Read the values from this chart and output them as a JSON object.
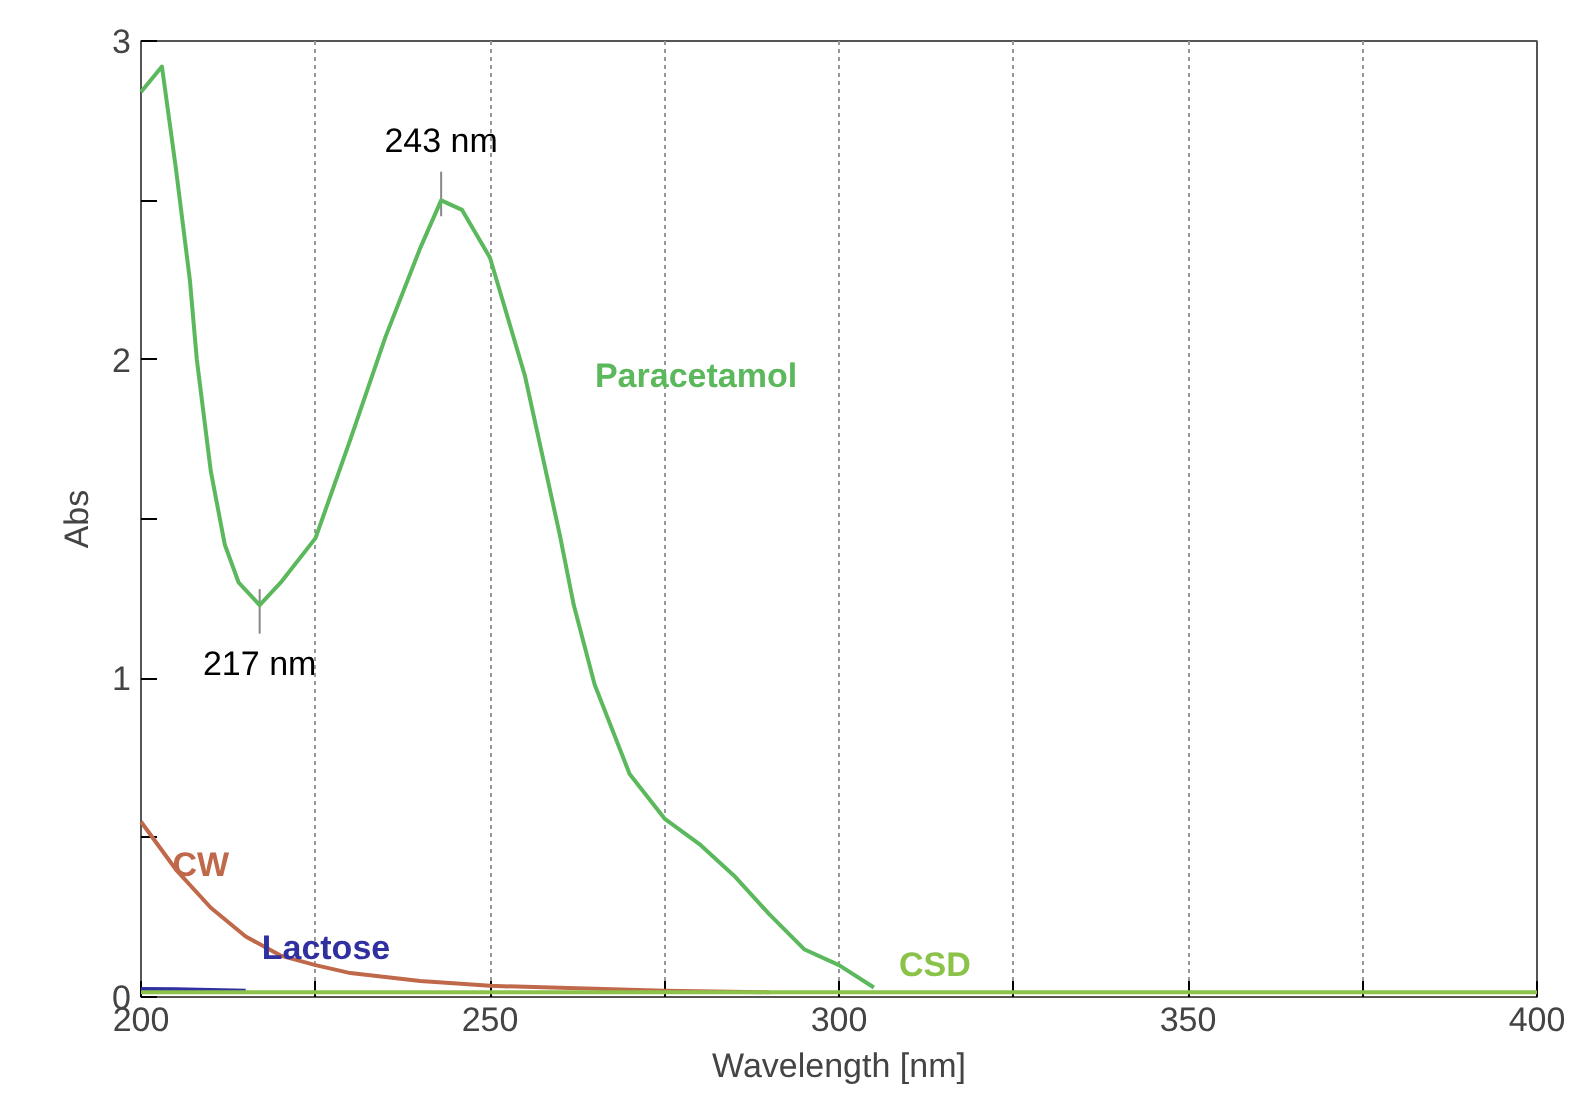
{
  "chart_data": {
    "type": "line",
    "xlabel": "Wavelength [nm]",
    "ylabel": "Abs",
    "xlim": [
      200,
      400
    ],
    "ylim": [
      0,
      3
    ],
    "xticks": [
      200,
      {
        "value": 225,
        "label": null
      },
      250,
      {
        "value": 275,
        "label": null
      },
      300,
      {
        "value": 325,
        "label": null
      },
      350,
      {
        "value": 375,
        "label": null
      },
      400
    ],
    "yticks": [
      0,
      {
        "value": 0.5,
        "label": null
      },
      1,
      {
        "value": 1.5,
        "label": null
      },
      2,
      {
        "value": 2.5,
        "label": null
      },
      3
    ],
    "grid": "x",
    "marker": "none",
    "line_style": "solid",
    "series": [
      {
        "name": "Paracetamol",
        "color": "#5cb85c",
        "x": [
          200,
          203,
          205,
          207,
          208,
          210,
          212,
          214,
          217,
          220,
          225,
          230,
          235,
          240,
          243,
          246,
          250,
          255,
          260,
          262,
          265,
          270,
          275,
          280,
          285,
          290,
          295,
          300,
          305
        ],
        "values": [
          2.84,
          2.92,
          2.6,
          2.25,
          2.0,
          1.65,
          1.42,
          1.3,
          1.23,
          1.3,
          1.44,
          1.75,
          2.07,
          2.35,
          2.5,
          2.47,
          2.32,
          1.95,
          1.45,
          1.23,
          0.98,
          0.7,
          0.56,
          0.48,
          0.38,
          0.26,
          0.15,
          0.1,
          0.03
        ]
      },
      {
        "name": "CW",
        "color": "#c0694a",
        "x": [
          200,
          205,
          210,
          215,
          220,
          225,
          230,
          240,
          250,
          275,
          290
        ],
        "values": [
          0.55,
          0.4,
          0.28,
          0.19,
          0.13,
          0.1,
          0.075,
          0.05,
          0.035,
          0.02,
          0.015
        ]
      },
      {
        "name": "Lactose",
        "color": "#3030a0",
        "x": [
          200,
          205,
          210,
          215
        ],
        "values": [
          0.025,
          0.024,
          0.022,
          0.02
        ]
      },
      {
        "name": "CSD",
        "color": "#8bc34a",
        "x": [
          200,
          250,
          300,
          350,
          400
        ],
        "values": [
          0.015,
          0.015,
          0.015,
          0.015,
          0.015
        ]
      }
    ],
    "annotations": [
      {
        "text": "243 nm",
        "x": 243,
        "y": 2.5
      },
      {
        "text": "217 nm",
        "x": 217,
        "y": 1.23
      }
    ]
  }
}
